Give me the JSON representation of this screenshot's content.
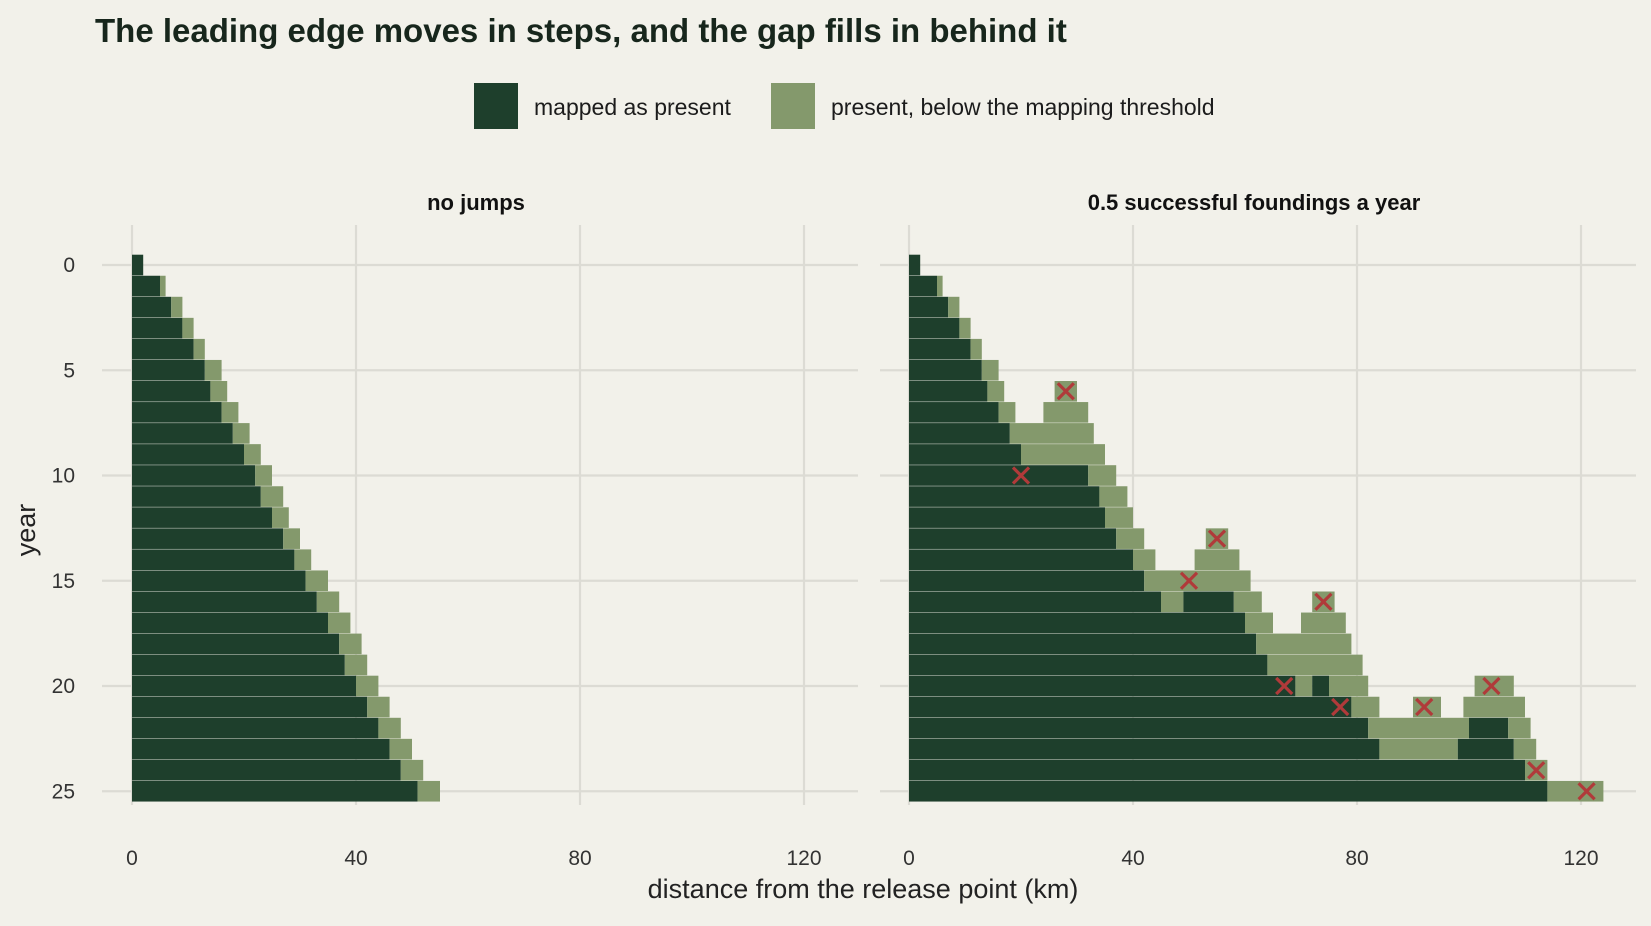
{
  "chart_data": {
    "type": "bar",
    "title": "The leading edge moves in steps, and the gap fills in behind it",
    "xlabel": "distance from the release point (km)",
    "ylabel": "year",
    "xlim": [
      -3,
      130
    ],
    "ylim": [
      -0.5,
      25.5
    ],
    "x_ticks": [
      0,
      40,
      80,
      120
    ],
    "y_ticks": [
      0,
      5,
      10,
      15,
      20,
      25
    ],
    "y_reversed": true,
    "grid": true,
    "legend_placement": "top",
    "colors": {
      "mapped": "#1e3f2c",
      "below": "#84996c",
      "founding_marker": "#b03a3a",
      "background": "#f2f1ea",
      "grid": "#dcdbd4"
    },
    "legend": [
      {
        "key": "mapped",
        "label": "mapped as present"
      },
      {
        "key": "below",
        "label": "present, below the mapping threshold"
      }
    ],
    "panels": [
      {
        "title": "no jumps",
        "rows": [
          {
            "year": 0,
            "segments": [
              [
                0,
                2,
                "mapped"
              ]
            ]
          },
          {
            "year": 1,
            "segments": [
              [
                0,
                5,
                "mapped"
              ],
              [
                5,
                6,
                "below"
              ]
            ]
          },
          {
            "year": 2,
            "segments": [
              [
                0,
                7,
                "mapped"
              ],
              [
                7,
                9,
                "below"
              ]
            ]
          },
          {
            "year": 3,
            "segments": [
              [
                0,
                9,
                "mapped"
              ],
              [
                9,
                11,
                "below"
              ]
            ]
          },
          {
            "year": 4,
            "segments": [
              [
                0,
                11,
                "mapped"
              ],
              [
                11,
                13,
                "below"
              ]
            ]
          },
          {
            "year": 5,
            "segments": [
              [
                0,
                13,
                "mapped"
              ],
              [
                13,
                16,
                "below"
              ]
            ]
          },
          {
            "year": 6,
            "segments": [
              [
                0,
                14,
                "mapped"
              ],
              [
                14,
                17,
                "below"
              ]
            ]
          },
          {
            "year": 7,
            "segments": [
              [
                0,
                16,
                "mapped"
              ],
              [
                16,
                19,
                "below"
              ]
            ]
          },
          {
            "year": 8,
            "segments": [
              [
                0,
                18,
                "mapped"
              ],
              [
                18,
                21,
                "below"
              ]
            ]
          },
          {
            "year": 9,
            "segments": [
              [
                0,
                20,
                "mapped"
              ],
              [
                20,
                23,
                "below"
              ]
            ]
          },
          {
            "year": 10,
            "segments": [
              [
                0,
                22,
                "mapped"
              ],
              [
                22,
                25,
                "below"
              ]
            ]
          },
          {
            "year": 11,
            "segments": [
              [
                0,
                23,
                "mapped"
              ],
              [
                23,
                27,
                "below"
              ]
            ]
          },
          {
            "year": 12,
            "segments": [
              [
                0,
                25,
                "mapped"
              ],
              [
                25,
                28,
                "below"
              ]
            ]
          },
          {
            "year": 13,
            "segments": [
              [
                0,
                27,
                "mapped"
              ],
              [
                27,
                30,
                "below"
              ]
            ]
          },
          {
            "year": 14,
            "segments": [
              [
                0,
                29,
                "mapped"
              ],
              [
                29,
                32,
                "below"
              ]
            ]
          },
          {
            "year": 15,
            "segments": [
              [
                0,
                31,
                "mapped"
              ],
              [
                31,
                35,
                "below"
              ]
            ]
          },
          {
            "year": 16,
            "segments": [
              [
                0,
                33,
                "mapped"
              ],
              [
                33,
                37,
                "below"
              ]
            ]
          },
          {
            "year": 17,
            "segments": [
              [
                0,
                35,
                "mapped"
              ],
              [
                35,
                39,
                "below"
              ]
            ]
          },
          {
            "year": 18,
            "segments": [
              [
                0,
                37,
                "mapped"
              ],
              [
                37,
                41,
                "below"
              ]
            ]
          },
          {
            "year": 19,
            "segments": [
              [
                0,
                38,
                "mapped"
              ],
              [
                38,
                42,
                "below"
              ]
            ]
          },
          {
            "year": 20,
            "segments": [
              [
                0,
                40,
                "mapped"
              ],
              [
                40,
                44,
                "below"
              ]
            ]
          },
          {
            "year": 21,
            "segments": [
              [
                0,
                42,
                "mapped"
              ],
              [
                42,
                46,
                "below"
              ]
            ]
          },
          {
            "year": 22,
            "segments": [
              [
                0,
                44,
                "mapped"
              ],
              [
                44,
                48,
                "below"
              ]
            ]
          },
          {
            "year": 23,
            "segments": [
              [
                0,
                46,
                "mapped"
              ],
              [
                46,
                50,
                "below"
              ]
            ]
          },
          {
            "year": 24,
            "segments": [
              [
                0,
                48,
                "mapped"
              ],
              [
                48,
                52,
                "below"
              ]
            ]
          },
          {
            "year": 25,
            "segments": [
              [
                0,
                51,
                "mapped"
              ],
              [
                51,
                55,
                "below"
              ]
            ]
          }
        ],
        "foundings": []
      },
      {
        "title": "0.5 successful foundings a year",
        "rows": [
          {
            "year": 0,
            "segments": [
              [
                0,
                2,
                "mapped"
              ]
            ]
          },
          {
            "year": 1,
            "segments": [
              [
                0,
                5,
                "mapped"
              ],
              [
                5,
                6,
                "below"
              ]
            ]
          },
          {
            "year": 2,
            "segments": [
              [
                0,
                7,
                "mapped"
              ],
              [
                7,
                9,
                "below"
              ]
            ]
          },
          {
            "year": 3,
            "segments": [
              [
                0,
                9,
                "mapped"
              ],
              [
                9,
                11,
                "below"
              ]
            ]
          },
          {
            "year": 4,
            "segments": [
              [
                0,
                11,
                "mapped"
              ],
              [
                11,
                13,
                "below"
              ]
            ]
          },
          {
            "year": 5,
            "segments": [
              [
                0,
                13,
                "mapped"
              ],
              [
                13,
                16,
                "below"
              ]
            ]
          },
          {
            "year": 6,
            "segments": [
              [
                0,
                14,
                "mapped"
              ],
              [
                14,
                17,
                "below"
              ],
              [
                26,
                30,
                "below"
              ]
            ]
          },
          {
            "year": 7,
            "segments": [
              [
                0,
                16,
                "mapped"
              ],
              [
                16,
                19,
                "below"
              ],
              [
                24,
                32,
                "below"
              ]
            ]
          },
          {
            "year": 8,
            "segments": [
              [
                0,
                18,
                "mapped"
              ],
              [
                18,
                33,
                "below"
              ]
            ]
          },
          {
            "year": 9,
            "segments": [
              [
                0,
                20,
                "mapped"
              ],
              [
                20,
                35,
                "below"
              ]
            ]
          },
          {
            "year": 10,
            "segments": [
              [
                0,
                32,
                "mapped"
              ],
              [
                32,
                37,
                "below"
              ]
            ]
          },
          {
            "year": 11,
            "segments": [
              [
                0,
                34,
                "mapped"
              ],
              [
                34,
                39,
                "below"
              ]
            ]
          },
          {
            "year": 12,
            "segments": [
              [
                0,
                35,
                "mapped"
              ],
              [
                35,
                40,
                "below"
              ]
            ]
          },
          {
            "year": 13,
            "segments": [
              [
                0,
                37,
                "mapped"
              ],
              [
                37,
                42,
                "below"
              ],
              [
                53,
                57,
                "below"
              ]
            ]
          },
          {
            "year": 14,
            "segments": [
              [
                0,
                40,
                "mapped"
              ],
              [
                40,
                44,
                "below"
              ],
              [
                51,
                59,
                "below"
              ]
            ]
          },
          {
            "year": 15,
            "segments": [
              [
                0,
                42,
                "mapped"
              ],
              [
                42,
                61,
                "below"
              ]
            ]
          },
          {
            "year": 16,
            "segments": [
              [
                0,
                45,
                "mapped"
              ],
              [
                45,
                49,
                "below"
              ],
              [
                49,
                58,
                "mapped"
              ],
              [
                58,
                63,
                "below"
              ],
              [
                72,
                76,
                "below"
              ]
            ]
          },
          {
            "year": 17,
            "segments": [
              [
                0,
                60,
                "mapped"
              ],
              [
                60,
                65,
                "below"
              ],
              [
                70,
                78,
                "below"
              ]
            ]
          },
          {
            "year": 18,
            "segments": [
              [
                0,
                62,
                "mapped"
              ],
              [
                62,
                79,
                "below"
              ]
            ]
          },
          {
            "year": 19,
            "segments": [
              [
                0,
                64,
                "mapped"
              ],
              [
                64,
                81,
                "below"
              ]
            ]
          },
          {
            "year": 20,
            "segments": [
              [
                0,
                69,
                "mapped"
              ],
              [
                69,
                72,
                "below"
              ],
              [
                72,
                75,
                "mapped"
              ],
              [
                75,
                82,
                "below"
              ],
              [
                101,
                108,
                "below"
              ]
            ]
          },
          {
            "year": 21,
            "segments": [
              [
                0,
                79,
                "mapped"
              ],
              [
                79,
                84,
                "below"
              ],
              [
                90,
                95,
                "below"
              ],
              [
                99,
                110,
                "below"
              ]
            ]
          },
          {
            "year": 22,
            "segments": [
              [
                0,
                82,
                "mapped"
              ],
              [
                82,
                100,
                "below"
              ],
              [
                100,
                107,
                "mapped"
              ],
              [
                107,
                111,
                "below"
              ]
            ]
          },
          {
            "year": 23,
            "segments": [
              [
                0,
                84,
                "mapped"
              ],
              [
                84,
                98,
                "below"
              ],
              [
                98,
                108,
                "mapped"
              ],
              [
                108,
                112,
                "below"
              ]
            ]
          },
          {
            "year": 24,
            "segments": [
              [
                0,
                110,
                "mapped"
              ],
              [
                110,
                114,
                "below"
              ]
            ]
          },
          {
            "year": 25,
            "segments": [
              [
                0,
                114,
                "mapped"
              ],
              [
                114,
                124,
                "below"
              ]
            ]
          }
        ],
        "foundings": [
          {
            "year": 6,
            "x": 28
          },
          {
            "year": 10,
            "x": 20
          },
          {
            "year": 13,
            "x": 55
          },
          {
            "year": 15,
            "x": 50
          },
          {
            "year": 16,
            "x": 74
          },
          {
            "year": 20,
            "x": 67
          },
          {
            "year": 20,
            "x": 104
          },
          {
            "year": 21,
            "x": 77
          },
          {
            "year": 21,
            "x": 92
          },
          {
            "year": 24,
            "x": 112
          },
          {
            "year": 25,
            "x": 121
          }
        ]
      }
    ]
  }
}
